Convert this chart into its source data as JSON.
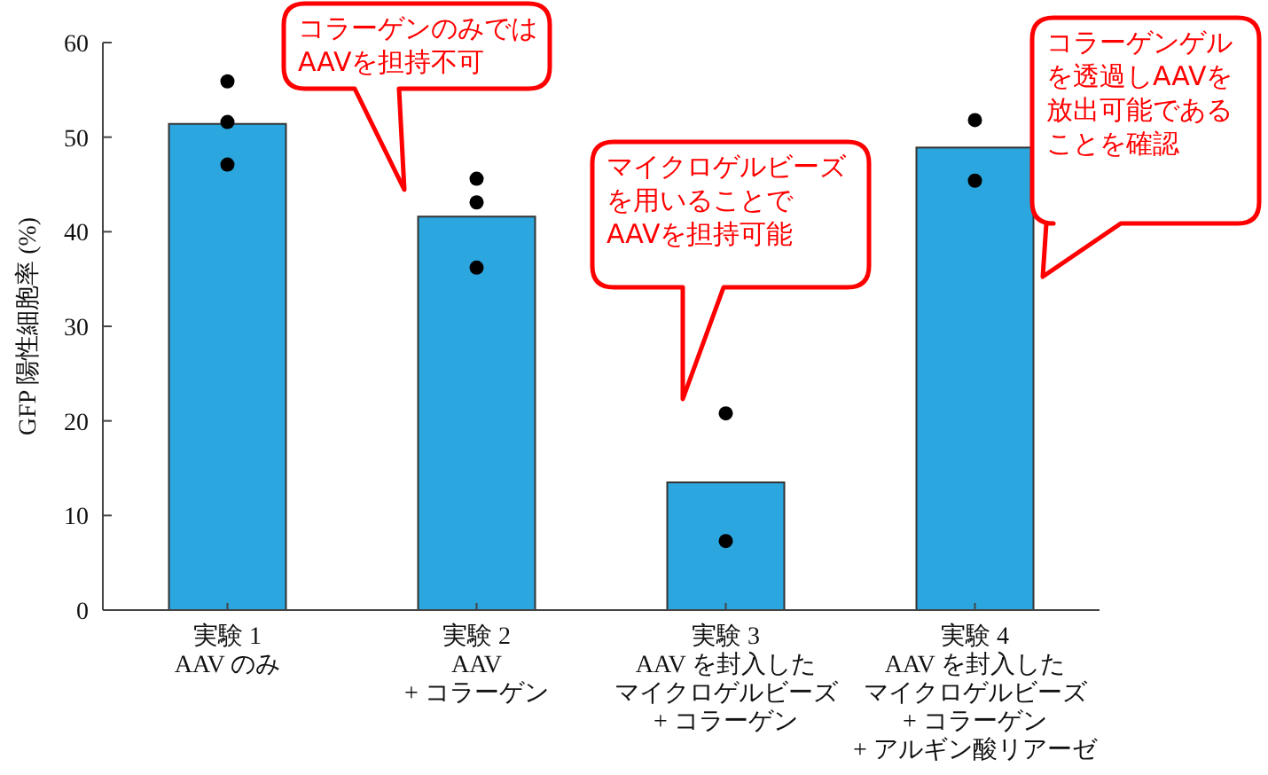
{
  "chart_data": {
    "type": "bar",
    "ylabel": "GFP 陽性細胞率 (%)",
    "categories": [
      "実験 1\nAAV のみ",
      "実験 2\nAAV\n+ コラーゲン",
      "実験 3\nAAV を封入したマイクロゲルビーズ\n+ コラーゲン",
      "実験 4\nAAV を封入したマイクロゲルビーズ\n+ コラーゲン\n+ アルギン酸リアーゼ"
    ],
    "series": [
      {
        "color": "#2ca6de",
        "values": [
          51.4,
          41.6,
          13.5,
          48.9
        ]
      },
      {
        "type": "scatter",
        "color": "#000000",
        "marker": "circle",
        "x": [
          "実験 1\nAAV のみ",
          "実験 1\nAAV のみ",
          "実験 1\nAAV のみ",
          "実験 2\nAAV\n+ コラーゲン",
          "実験 2\nAAV\n+ コラーゲン",
          "実験 2\nAAV\n+ コラーゲン",
          "実験 3\nAAV を封入したマイクロゲルビーズ\n+ コラーゲン",
          "実験 3\nAAV を封入したマイクロゲルビーズ\n+ コラーゲン",
          "実験 4\nAAV を封入したマイクロゲルビーズ\n+ コラーゲン\n+ アルギン酸リアーゼ",
          "実験 4\nAAV を封入したマイクロゲルビーズ\n+ コラーゲン\n+ アルギン酸リアーゼ"
        ],
        "values": [
          55.9,
          51.6,
          47.1,
          45.6,
          43.1,
          36.2,
          20.8,
          7.3,
          51.8,
          45.4
        ]
      }
    ],
    "ylim": [
      0,
      60
    ],
    "yticks": [
      0,
      10,
      20,
      30,
      40,
      50,
      60
    ],
    "grid": false,
    "annotations": [
      "コラーゲンのみでは\nAAVを担持不可",
      "マイクロゲルビーズを用いることで\nAAVを担持可能",
      "コラーゲンゲルを透過しAAVを放出可能であることを確認"
    ]
  }
}
